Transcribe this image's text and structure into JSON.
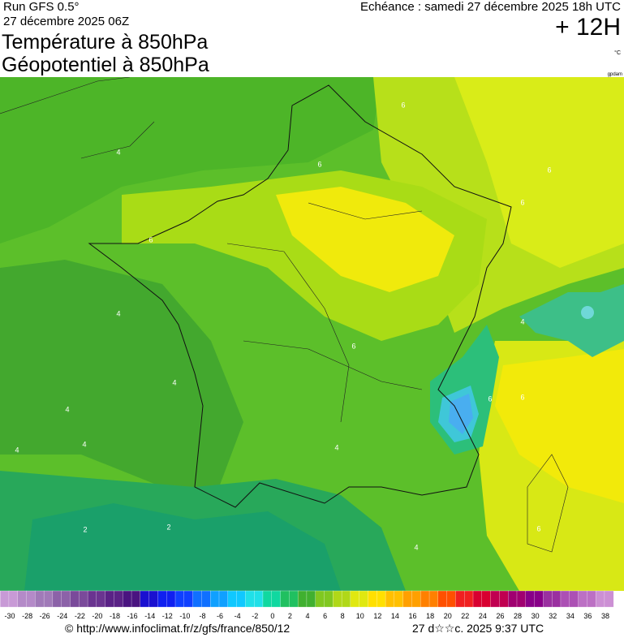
{
  "header": {
    "run": "Run GFS 0.5°",
    "run_date": "27 décembre 2025 06Z",
    "valid": "Echéance : samedi 27 décembre 2025 18h UTC",
    "lead": "+ 12H",
    "title1": "Température à 850hPa",
    "title2": "Géopotentiel à 850hPa",
    "unit": "°C",
    "geo_unit": "gpdam"
  },
  "contour_labels": [
    "6",
    "4",
    "6",
    "6",
    "6",
    "6",
    "4",
    "4",
    "6",
    "4",
    "4",
    "4",
    "4",
    "2",
    "2",
    "6",
    "6",
    "4",
    "4",
    "6"
  ],
  "scale": {
    "ticks": [
      -30,
      -28,
      -26,
      -24,
      -22,
      -20,
      -18,
      -16,
      -14,
      -12,
      -10,
      -8,
      -6,
      -4,
      -2,
      0,
      2,
      4,
      6,
      8,
      10,
      12,
      14,
      16,
      18,
      20,
      22,
      24,
      26,
      28,
      30,
      32,
      34,
      36,
      38
    ]
  },
  "footer": {
    "url": "© http://www.infoclimat.fr/z/gfs/france/850/12",
    "stamp": "27 d☆☆c. 2025  9:37 UTC"
  }
}
